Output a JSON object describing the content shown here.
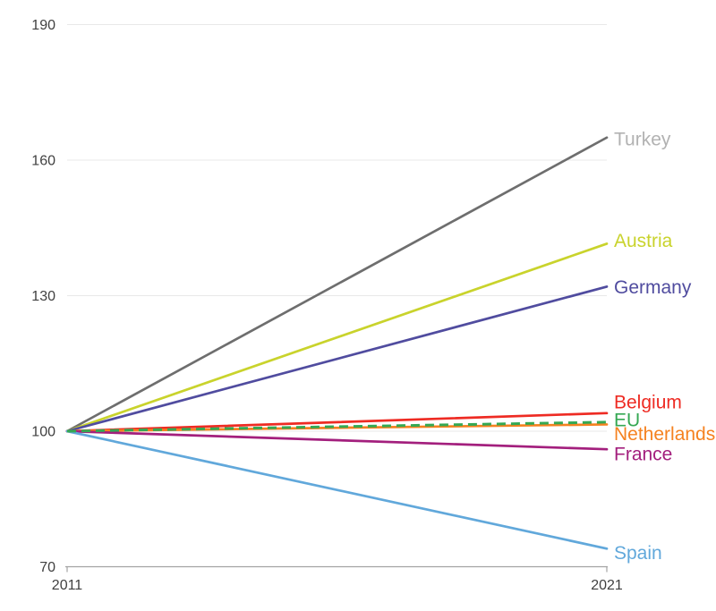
{
  "chart_data": {
    "type": "line",
    "title": "",
    "xlabel": "",
    "ylabel": "",
    "x": [
      2011,
      2021
    ],
    "xlim": [
      2011,
      2021
    ],
    "ylim": [
      70,
      190
    ],
    "yticks": [
      70,
      100,
      130,
      160,
      190
    ],
    "xtick_labels": [
      "2011",
      "2021"
    ],
    "grid": true,
    "legend_position": "end-of-line-labels",
    "index_base": 100,
    "series": [
      {
        "name": "Turkey",
        "values": [
          100,
          165
        ],
        "color": "#6E6E6E",
        "label_color": "#B2B2B2",
        "dashed": false,
        "label_dy": 3
      },
      {
        "name": "Austria",
        "values": [
          100,
          141.5
        ],
        "color": "#C9D32C",
        "label_color": "#C9D32C",
        "dashed": false,
        "label_dy": -2
      },
      {
        "name": "Germany",
        "values": [
          100,
          132
        ],
        "color": "#504C9F",
        "label_color": "#504C9F",
        "dashed": false,
        "label_dy": 2
      },
      {
        "name": "Belgium",
        "values": [
          100,
          104
        ],
        "color": "#EE2B23",
        "label_color": "#EE2B23",
        "dashed": false,
        "label_dy": -11
      },
      {
        "name": "EU",
        "values": [
          100,
          102
        ],
        "color": "#35A853",
        "label_color": "#35A853",
        "dashed": true,
        "label_dy": -1
      },
      {
        "name": "Netherlands",
        "values": [
          100,
          101.5
        ],
        "color": "#F58220",
        "label_color": "#F58220",
        "dashed": false,
        "label_dy": 12
      },
      {
        "name": "France",
        "values": [
          100,
          96
        ],
        "color": "#A31F7D",
        "label_color": "#A31F7D",
        "dashed": false,
        "label_dy": 7
      },
      {
        "name": "Spain",
        "values": [
          100,
          74
        ],
        "color": "#61A8DB",
        "label_color": "#61A8DB",
        "dashed": false,
        "label_dy": 6
      }
    ],
    "colors": {
      "gridline": "#E8E8E8",
      "axis": "#A3A3A3",
      "tick_text": "#404040",
      "background": "#FFFFFF"
    }
  }
}
